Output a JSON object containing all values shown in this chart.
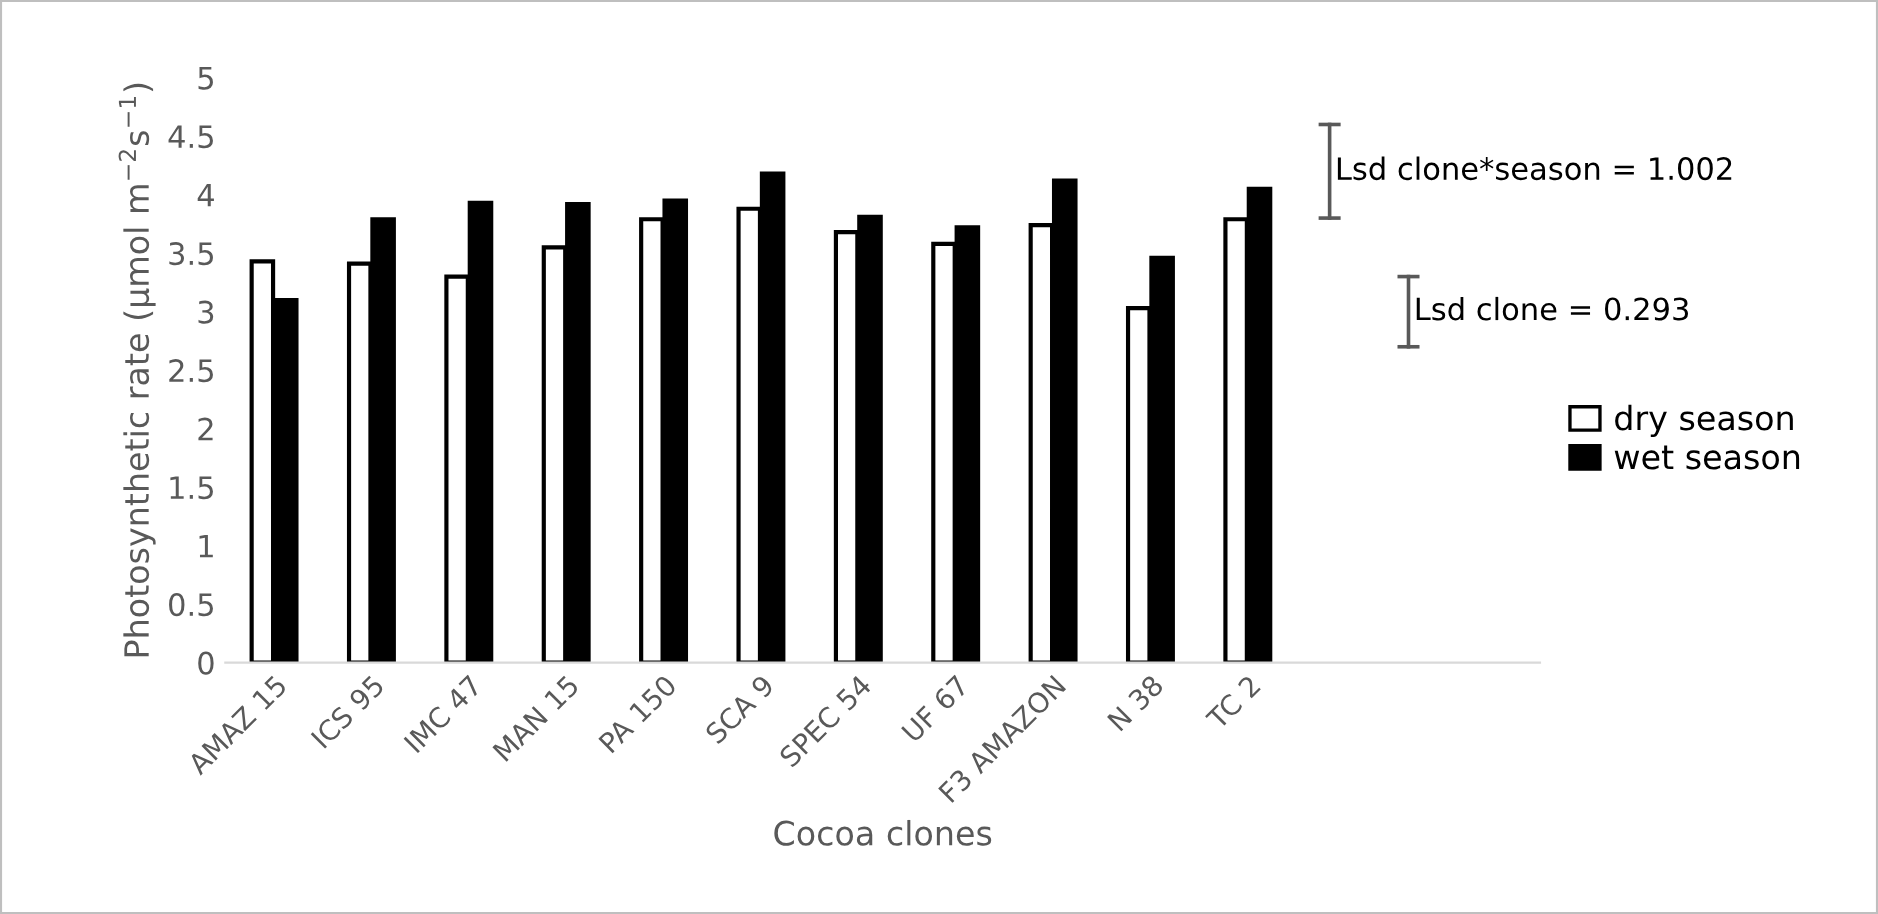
{
  "chart_data": {
    "type": "bar",
    "xlabel": "Cocoa clones",
    "ylabel": "Photosynthetic rate (µmol m$^{−2}$s$^{−1}$)",
    "categories": [
      "AMAZ 15",
      "ICS 95",
      "IMC 47",
      "MAN 15",
      "PA 150",
      "SCA 9",
      "SPEC 54",
      "UF 67",
      "F3 AMAZON",
      "N 38",
      "TC 2"
    ],
    "series": [
      {
        "name": "dry season",
        "color": "#ffffff",
        "values": [
          3.43,
          3.41,
          3.3,
          3.55,
          3.79,
          3.88,
          3.68,
          3.58,
          3.74,
          3.03,
          3.79
        ]
      },
      {
        "name": "wet season",
        "color": "#000000",
        "values": [
          3.1,
          3.79,
          3.93,
          3.92,
          3.95,
          4.18,
          3.81,
          3.72,
          4.12,
          3.46,
          4.05
        ]
      }
    ],
    "ylim": [
      0,
      5
    ],
    "yticks": [
      0,
      0.5,
      1,
      1.5,
      2,
      2.5,
      3,
      3.5,
      4,
      4.5,
      5
    ],
    "legend": "right",
    "annotations": [
      "Lsd clone*season = 1.002",
      "Lsd clone = 0.293"
    ]
  }
}
